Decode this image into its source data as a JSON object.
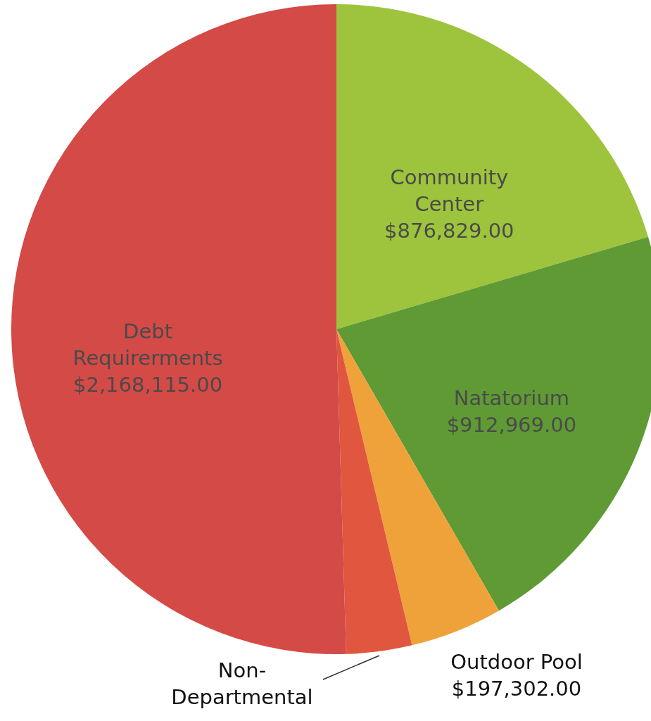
{
  "chart_data": {
    "type": "pie",
    "categories": [
      "Community Center",
      "Natatorium",
      "Outdoor Pool",
      "Non-Departmental",
      "Debt Requirerments"
    ],
    "values": [
      876829,
      912969,
      197302,
      140000,
      2168115
    ],
    "value_labels": [
      "$876,829.00",
      "$912,969.00",
      "$197,302.00",
      null,
      "$2,168,115.00"
    ],
    "colors": [
      "#9dc43c",
      "#5f9a35",
      "#f0a23a",
      "#e0563e",
      "#d44a46"
    ]
  }
}
